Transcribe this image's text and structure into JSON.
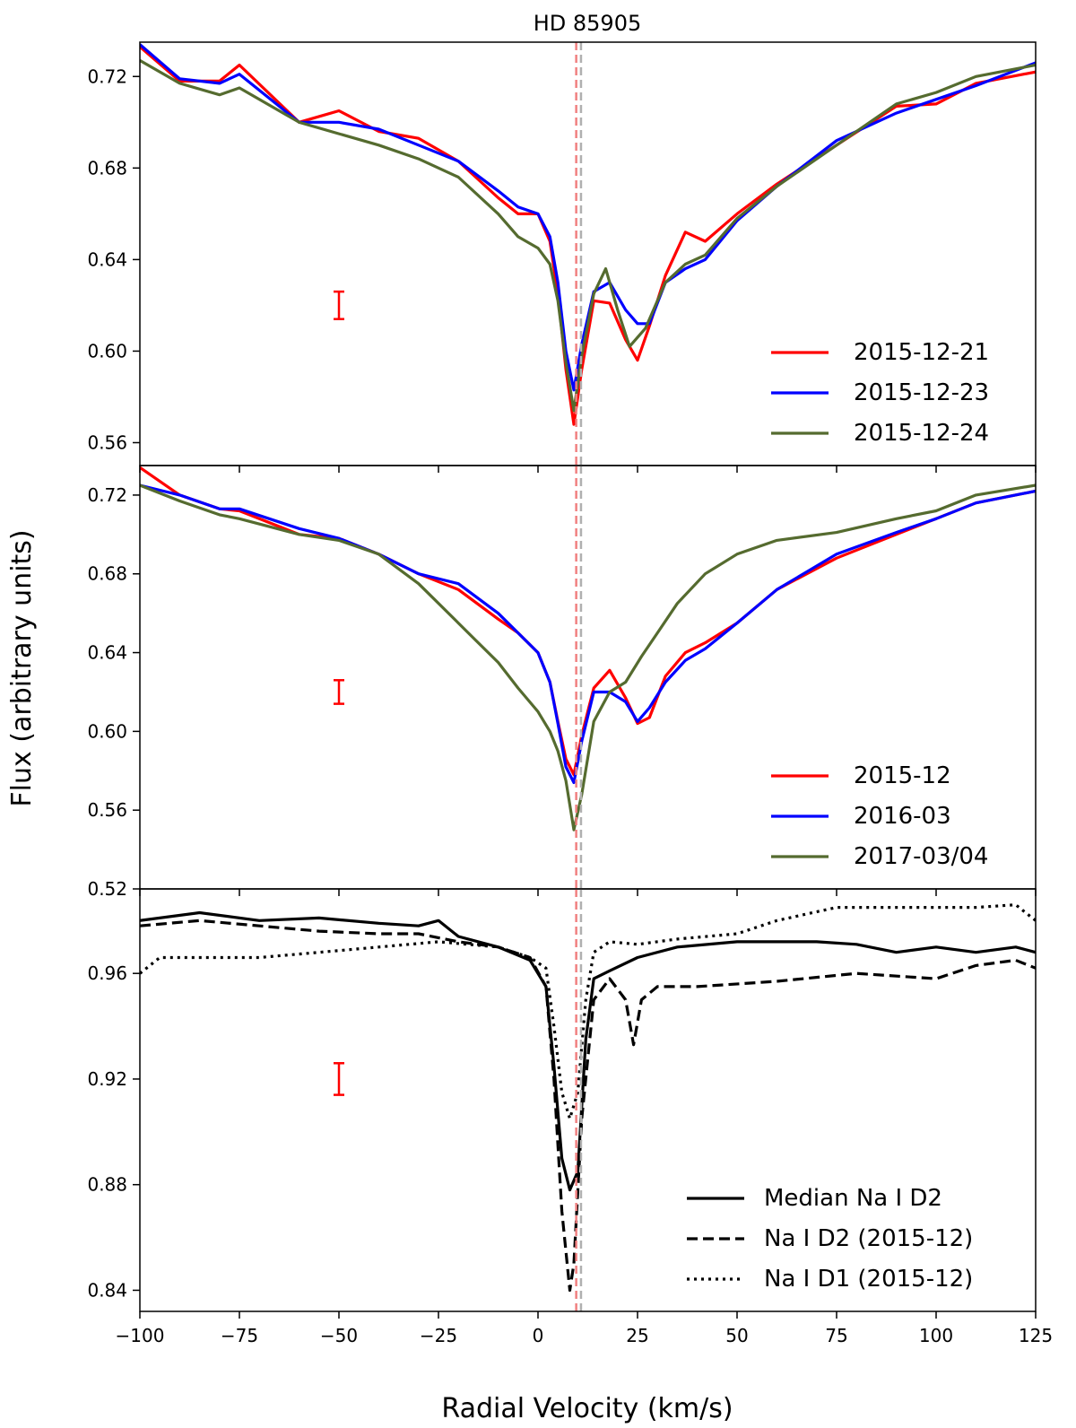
{
  "chart_data": {
    "type": "line",
    "title": "HD 85905",
    "xlabel": "Radial Velocity (km/s)",
    "ylabel": "Flux (arbitrary units)",
    "xlim": [
      -100,
      125
    ],
    "xticks": [
      -100,
      -75,
      -50,
      -25,
      0,
      25,
      50,
      75,
      100,
      125
    ],
    "xtick_labels": [
      "−100",
      "−75",
      "−50",
      "−25",
      "0",
      "25",
      "50",
      "75",
      "100",
      "125"
    ],
    "reference_lines_x": [
      {
        "x": 9.6,
        "color": "#f08080",
        "style": "dashed"
      },
      {
        "x": 10.8,
        "color": "#b0b0b0",
        "style": "dashed"
      }
    ],
    "panels": [
      {
        "name": "top",
        "ylim": [
          0.55,
          0.735
        ],
        "yticks": [
          0.56,
          0.6,
          0.64,
          0.68,
          0.72
        ],
        "ytick_labels": [
          "0.56",
          "0.60",
          "0.64",
          "0.68",
          "0.72"
        ],
        "error_bar": {
          "x": -50,
          "y": 0.62,
          "half_height": 0.006,
          "color": "#ff0000"
        },
        "legend": [
          "2015-12-21",
          "2015-12-23",
          "2015-12-24"
        ],
        "series": [
          {
            "name": "2015-12-21",
            "color": "#ff0000",
            "x": [
              -100,
              -90,
              -80,
              -75,
              -60,
              -50,
              -40,
              -30,
              -20,
              -10,
              -5,
              0,
              3,
              5,
              7,
              9,
              11,
              14,
              18,
              22,
              25,
              28,
              32,
              37,
              42,
              50,
              60,
              75,
              90,
              100,
              110,
              125
            ],
            "y": [
              0.733,
              0.718,
              0.718,
              0.725,
              0.7,
              0.705,
              0.696,
              0.693,
              0.683,
              0.667,
              0.66,
              0.66,
              0.648,
              0.625,
              0.592,
              0.568,
              0.592,
              0.622,
              0.621,
              0.605,
              0.596,
              0.611,
              0.633,
              0.652,
              0.648,
              0.66,
              0.673,
              0.69,
              0.707,
              0.708,
              0.717,
              0.722
            ]
          },
          {
            "name": "2015-12-23",
            "color": "#0000ff",
            "x": [
              -100,
              -90,
              -80,
              -75,
              -60,
              -50,
              -40,
              -30,
              -20,
              -10,
              -5,
              0,
              3,
              5,
              7,
              9,
              11,
              14,
              18,
              22,
              25,
              28,
              32,
              37,
              42,
              50,
              60,
              75,
              90,
              100,
              110,
              125
            ],
            "y": [
              0.734,
              0.719,
              0.717,
              0.721,
              0.7,
              0.7,
              0.697,
              0.69,
              0.683,
              0.67,
              0.663,
              0.66,
              0.65,
              0.63,
              0.6,
              0.583,
              0.603,
              0.626,
              0.63,
              0.618,
              0.612,
              0.612,
              0.63,
              0.636,
              0.64,
              0.657,
              0.672,
              0.692,
              0.704,
              0.71,
              0.716,
              0.726
            ]
          },
          {
            "name": "2015-12-24",
            "color": "#556b2f",
            "x": [
              -100,
              -90,
              -80,
              -75,
              -60,
              -50,
              -40,
              -30,
              -20,
              -10,
              -5,
              0,
              3,
              5,
              7,
              9,
              11,
              14,
              17,
              20,
              23,
              27,
              32,
              37,
              42,
              50,
              60,
              75,
              90,
              100,
              110,
              125
            ],
            "y": [
              0.727,
              0.717,
              0.712,
              0.715,
              0.7,
              0.695,
              0.69,
              0.684,
              0.676,
              0.66,
              0.65,
              0.645,
              0.638,
              0.622,
              0.595,
              0.574,
              0.598,
              0.625,
              0.636,
              0.618,
              0.602,
              0.61,
              0.63,
              0.638,
              0.642,
              0.658,
              0.672,
              0.69,
              0.708,
              0.713,
              0.72,
              0.725
            ]
          }
        ]
      },
      {
        "name": "middle",
        "ylim": [
          0.52,
          0.735
        ],
        "yticks": [
          0.52,
          0.56,
          0.6,
          0.64,
          0.68,
          0.72
        ],
        "ytick_labels": [
          "0.52",
          "0.56",
          "0.60",
          "0.64",
          "0.68",
          "0.72"
        ],
        "error_bar": {
          "x": -50,
          "y": 0.62,
          "half_height": 0.006,
          "color": "#ff0000"
        },
        "legend": [
          "2015-12",
          "2016-03",
          "2017-03/04"
        ],
        "series": [
          {
            "name": "2015-12",
            "color": "#ff0000",
            "x": [
              -100,
              -90,
              -80,
              -75,
              -60,
              -50,
              -40,
              -30,
              -20,
              -10,
              -5,
              0,
              3,
              5,
              7,
              9,
              11,
              14,
              18,
              22,
              25,
              28,
              32,
              37,
              42,
              50,
              60,
              75,
              90,
              100,
              110,
              125
            ],
            "y": [
              0.734,
              0.72,
              0.713,
              0.712,
              0.7,
              0.698,
              0.69,
              0.68,
              0.672,
              0.657,
              0.65,
              0.64,
              0.625,
              0.605,
              0.586,
              0.578,
              0.598,
              0.622,
              0.631,
              0.617,
              0.604,
              0.607,
              0.628,
              0.64,
              0.645,
              0.655,
              0.672,
              0.688,
              0.7,
              0.708,
              0.716,
              0.722
            ]
          },
          {
            "name": "2016-03",
            "color": "#0000ff",
            "x": [
              -100,
              -90,
              -80,
              -75,
              -60,
              -50,
              -40,
              -30,
              -20,
              -10,
              -5,
              0,
              3,
              5,
              7,
              9,
              11,
              14,
              18,
              22,
              25,
              28,
              32,
              37,
              42,
              50,
              60,
              75,
              90,
              100,
              110,
              125
            ],
            "y": [
              0.725,
              0.72,
              0.713,
              0.713,
              0.703,
              0.698,
              0.69,
              0.68,
              0.675,
              0.66,
              0.65,
              0.64,
              0.625,
              0.604,
              0.582,
              0.574,
              0.595,
              0.62,
              0.62,
              0.615,
              0.605,
              0.612,
              0.625,
              0.636,
              0.642,
              0.655,
              0.672,
              0.69,
              0.701,
              0.708,
              0.716,
              0.722
            ]
          },
          {
            "name": "2017-03/04",
            "color": "#556b2f",
            "x": [
              -100,
              -90,
              -80,
              -75,
              -60,
              -50,
              -40,
              -30,
              -20,
              -15,
              -10,
              -5,
              0,
              3,
              5,
              7,
              9,
              11,
              14,
              18,
              22,
              26,
              30,
              35,
              42,
              50,
              60,
              75,
              90,
              100,
              110,
              125
            ],
            "y": [
              0.725,
              0.717,
              0.71,
              0.708,
              0.7,
              0.697,
              0.69,
              0.675,
              0.655,
              0.645,
              0.635,
              0.622,
              0.61,
              0.6,
              0.59,
              0.575,
              0.55,
              0.568,
              0.605,
              0.62,
              0.625,
              0.638,
              0.65,
              0.665,
              0.68,
              0.69,
              0.697,
              0.701,
              0.708,
              0.712,
              0.72,
              0.725
            ]
          }
        ]
      },
      {
        "name": "bottom",
        "ylim": [
          0.832,
          0.992
        ],
        "yticks": [
          0.84,
          0.88,
          0.92,
          0.96
        ],
        "ytick_labels": [
          "0.84",
          "0.88",
          "0.92",
          "0.96"
        ],
        "error_bar": {
          "x": -50,
          "y": 0.92,
          "half_height": 0.006,
          "color": "#ff0000"
        },
        "legend": [
          "Median Na I D2",
          "Na I D2 (2015-12)",
          "Na I D1 (2015-12)"
        ],
        "series": [
          {
            "name": "Median Na I D2",
            "color": "#000000",
            "dash": "solid",
            "x": [
              -100,
              -85,
              -70,
              -55,
              -40,
              -30,
              -25,
              -20,
              -10,
              -2,
              2,
              4,
              6,
              8,
              10,
              12,
              14,
              18,
              25,
              35,
              50,
              60,
              70,
              80,
              90,
              100,
              110,
              120,
              125
            ],
            "y": [
              0.98,
              0.983,
              0.98,
              0.981,
              0.979,
              0.978,
              0.98,
              0.974,
              0.97,
              0.965,
              0.955,
              0.925,
              0.89,
              0.878,
              0.885,
              0.935,
              0.958,
              0.961,
              0.966,
              0.97,
              0.972,
              0.972,
              0.972,
              0.971,
              0.968,
              0.97,
              0.968,
              0.97,
              0.968
            ]
          },
          {
            "name": "Na I D2 (2015-12)",
            "color": "#000000",
            "dash": "dashed",
            "x": [
              -100,
              -85,
              -70,
              -55,
              -40,
              -30,
              -20,
              -10,
              -2,
              2,
              4,
              6,
              8,
              9,
              11,
              14,
              18,
              22,
              24,
              26,
              30,
              40,
              60,
              80,
              100,
              110,
              120,
              125
            ],
            "y": [
              0.978,
              0.98,
              0.978,
              0.976,
              0.975,
              0.975,
              0.972,
              0.97,
              0.966,
              0.955,
              0.92,
              0.87,
              0.84,
              0.85,
              0.905,
              0.95,
              0.958,
              0.95,
              0.933,
              0.95,
              0.955,
              0.955,
              0.957,
              0.96,
              0.958,
              0.963,
              0.965,
              0.962
            ]
          },
          {
            "name": "Na I D1 (2015-12)",
            "color": "#000000",
            "dash": "dotted",
            "x": [
              -100,
              -95,
              -85,
              -70,
              -55,
              -40,
              -25,
              -10,
              -2,
              2,
              4,
              6,
              8,
              10,
              12,
              14,
              18,
              25,
              35,
              50,
              60,
              75,
              90,
              100,
              110,
              120,
              125
            ],
            "y": [
              0.96,
              0.966,
              0.966,
              0.966,
              0.968,
              0.97,
              0.972,
              0.97,
              0.966,
              0.962,
              0.94,
              0.915,
              0.905,
              0.915,
              0.95,
              0.968,
              0.972,
              0.971,
              0.973,
              0.975,
              0.98,
              0.985,
              0.985,
              0.985,
              0.985,
              0.986,
              0.98
            ]
          }
        ]
      }
    ]
  }
}
